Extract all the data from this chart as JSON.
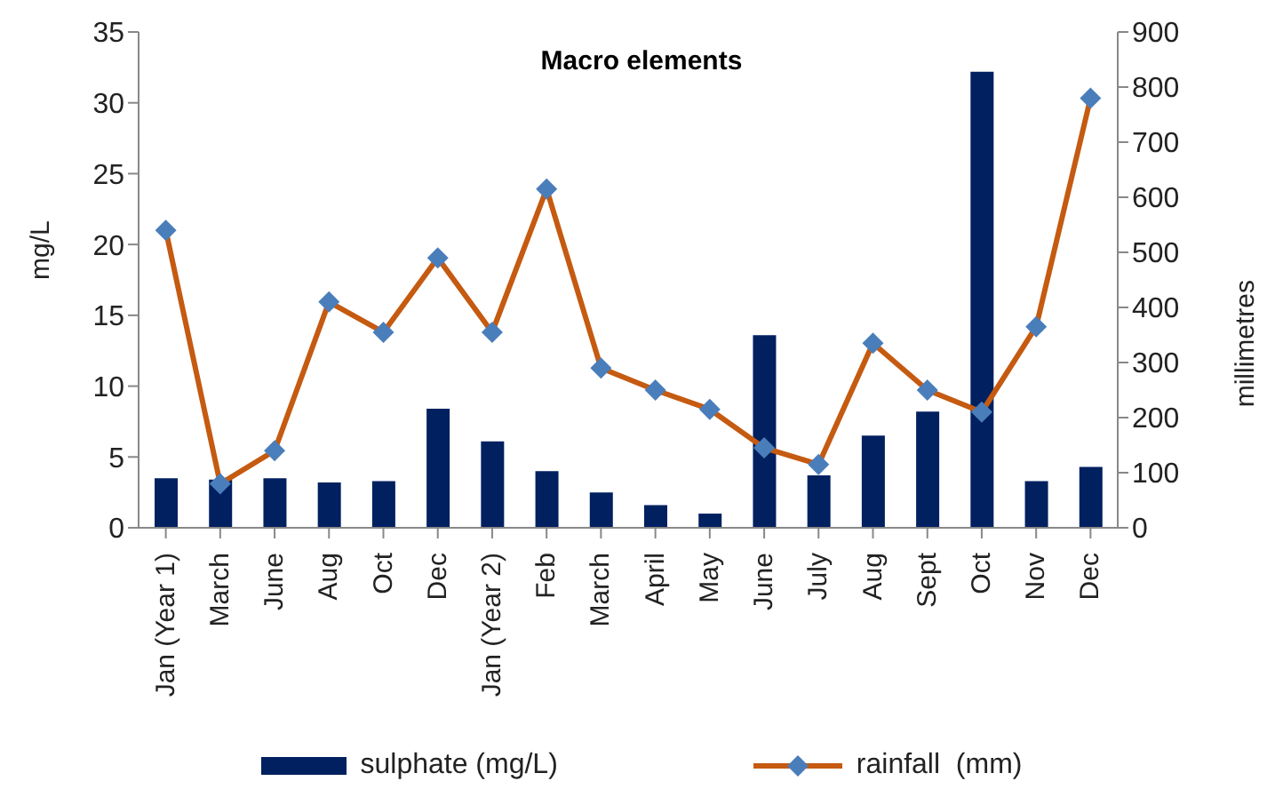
{
  "chart_data": {
    "type": "bar",
    "title": "Macro elements",
    "ylabel": "mg/L",
    "y2label": "millimetres",
    "categories": [
      "Jan (Year 1)",
      "March",
      "June",
      "Aug",
      "Oct",
      "Dec",
      "Jan (Year 2)",
      "Feb",
      "March",
      "April",
      "May",
      "June",
      "July",
      "Aug",
      "Sept",
      "Oct",
      "Nov",
      "Dec"
    ],
    "series": [
      {
        "name": "sulphate (mg/L)",
        "color": "#002060",
        "values": [
          3.5,
          3.4,
          3.5,
          3.2,
          3.3,
          8.4,
          6.1,
          4.0,
          2.5,
          1.6,
          1.0,
          13.6,
          3.7,
          6.5,
          8.2,
          32.2,
          3.3,
          4.3
        ]
      },
      {
        "name": "rainfall  (mm)",
        "type": "line",
        "axis": "y2",
        "color": "#c55a11",
        "marker": "diamond",
        "values": [
          540,
          80,
          140,
          410,
          355,
          490,
          355,
          615,
          290,
          250,
          215,
          145,
          115,
          335,
          250,
          210,
          365,
          780
        ]
      }
    ],
    "ylim": [
      0,
      35
    ],
    "yticks": [
      0,
      5,
      10,
      15,
      20,
      25,
      30,
      35
    ],
    "y2lim": [
      0,
      900
    ],
    "y2ticks": [
      0,
      100,
      200,
      300,
      400,
      500,
      600,
      700,
      800,
      900
    ],
    "grid": false,
    "legend": "bottom"
  }
}
